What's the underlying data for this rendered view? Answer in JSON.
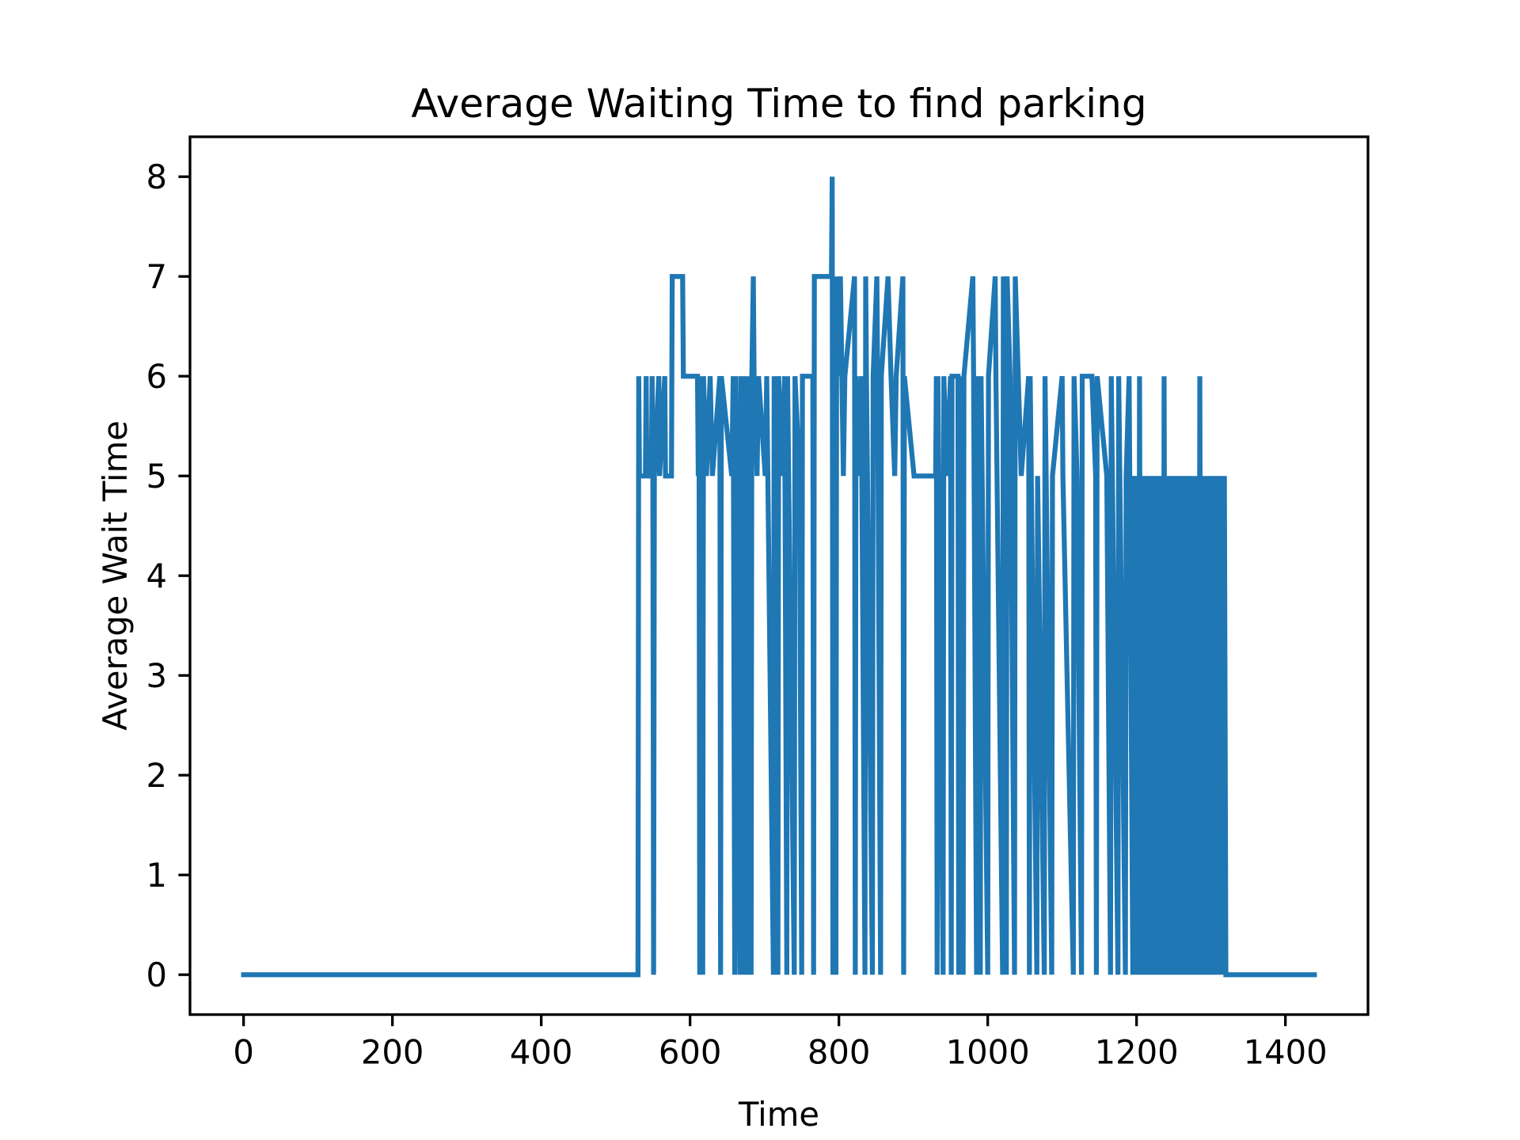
{
  "chart_data": {
    "type": "line",
    "title": "Average Waiting Time to find parking",
    "x_label": "Time",
    "y_label": "Average Wait Time",
    "xlim": [
      -72,
      1511
    ],
    "ylim": [
      -0.4,
      8.4
    ],
    "xticks": [
      0,
      200,
      400,
      600,
      800,
      1000,
      1200,
      1400
    ],
    "yticks": [
      0,
      1,
      2,
      3,
      4,
      5,
      6,
      7,
      8
    ],
    "grid": false,
    "x": [
      0,
      530,
      531,
      532,
      540,
      541,
      542,
      548,
      549,
      550,
      551,
      552,
      558,
      559,
      566,
      567,
      575,
      576,
      590,
      591,
      610,
      611,
      612,
      613,
      614,
      617,
      618,
      622,
      627,
      630,
      640,
      641,
      642,
      656,
      658,
      660,
      661,
      667,
      668,
      672,
      673,
      677,
      678,
      682,
      683,
      685,
      686,
      690,
      692,
      701,
      703,
      712,
      713,
      718,
      719,
      725,
      727,
      730,
      731,
      740,
      741,
      747,
      750,
      751,
      765,
      766,
      767,
      785,
      790,
      791,
      792,
      793,
      796,
      797,
      800,
      802,
      806,
      808,
      821,
      822,
      823,
      828,
      830,
      835,
      836,
      837,
      845,
      846,
      851,
      852,
      856,
      857,
      866,
      870,
      875,
      877,
      886,
      887,
      888,
      901,
      930,
      931,
      932,
      933,
      940,
      941,
      945,
      950,
      951,
      952,
      960,
      961,
      962,
      967,
      968,
      980,
      981,
      985,
      986,
      990,
      991,
      1000,
      1001,
      1010,
      1011,
      1020,
      1021,
      1025,
      1026,
      1030,
      1036,
      1037,
      1045,
      1055,
      1056,
      1057,
      1066,
      1067,
      1076,
      1077,
      1086,
      1087,
      1100,
      1101,
      1115,
      1116,
      1120,
      1126,
      1127,
      1140,
      1145,
      1146,
      1147,
      1160,
      1165,
      1166,
      1175,
      1176,
      1185,
      1186,
      1190,
      1195,
      1196,
      1200,
      1201,
      1203,
      1204,
      1206,
      1207,
      1209,
      1210,
      1212,
      1213,
      1215,
      1216,
      1218,
      1219,
      1221,
      1222,
      1224,
      1225,
      1227,
      1228,
      1230,
      1231,
      1233,
      1234,
      1236,
      1237,
      1239,
      1240,
      1242,
      1243,
      1245,
      1246,
      1248,
      1249,
      1251,
      1252,
      1254,
      1255,
      1257,
      1258,
      1260,
      1261,
      1263,
      1264,
      1266,
      1267,
      1269,
      1270,
      1272,
      1273,
      1275,
      1276,
      1278,
      1279,
      1281,
      1282,
      1284,
      1285,
      1287,
      1288,
      1290,
      1291,
      1293,
      1294,
      1296,
      1297,
      1299,
      1300,
      1302,
      1303,
      1305,
      1306,
      1308,
      1309,
      1311,
      1312,
      1314,
      1315,
      1317,
      1318,
      1320,
      1439
    ],
    "series": [
      {
        "name": "Average Wait Time",
        "color": "#1f77b4",
        "values": [
          0,
          0,
          6,
          5,
          5,
          6,
          5,
          5,
          6,
          5,
          0,
          5,
          6,
          5,
          6,
          5,
          5,
          7,
          7,
          6,
          6,
          5,
          6,
          0,
          5,
          0,
          6,
          5,
          6,
          5,
          6,
          0,
          6,
          5,
          6,
          0,
          6,
          0,
          6,
          0,
          6,
          0,
          6,
          0,
          6,
          7,
          6,
          5,
          6,
          5,
          6,
          0,
          6,
          0,
          6,
          5,
          6,
          0,
          6,
          0,
          6,
          5,
          0,
          6,
          6,
          0,
          7,
          7,
          7,
          8,
          0,
          7,
          0,
          7,
          6,
          7,
          5,
          6,
          7,
          0,
          6,
          5,
          6,
          0,
          7,
          6,
          0,
          6,
          7,
          6,
          0,
          6,
          7,
          6,
          5,
          6,
          7,
          0,
          6,
          5,
          5,
          6,
          0,
          6,
          0,
          6,
          5,
          6,
          0,
          6,
          6,
          0,
          6,
          0,
          6,
          7,
          6,
          0,
          6,
          0,
          6,
          0,
          6,
          7,
          6,
          0,
          7,
          0,
          7,
          6,
          0,
          7,
          5,
          6,
          0,
          6,
          0,
          5,
          0,
          6,
          0,
          5,
          6,
          5,
          0,
          6,
          5,
          0,
          6,
          6,
          5,
          0,
          6,
          5,
          0,
          6,
          0,
          6,
          0,
          5,
          6,
          0,
          5,
          0,
          5,
          0,
          6,
          0,
          5,
          0,
          5,
          0,
          5,
          0,
          5,
          0,
          5,
          0,
          5,
          0,
          5,
          0,
          5,
          0,
          5,
          0,
          5,
          0,
          6,
          0,
          5,
          0,
          5,
          0,
          5,
          0,
          5,
          0,
          5,
          0,
          5,
          0,
          5,
          0,
          5,
          0,
          5,
          0,
          5,
          0,
          5,
          0,
          5,
          0,
          5,
          0,
          5,
          0,
          5,
          0,
          6,
          0,
          5,
          0,
          5,
          0,
          5,
          0,
          5,
          0,
          5,
          0,
          5,
          0,
          5,
          0,
          5,
          0,
          5,
          0,
          5,
          0,
          5,
          0,
          0
        ]
      }
    ]
  }
}
